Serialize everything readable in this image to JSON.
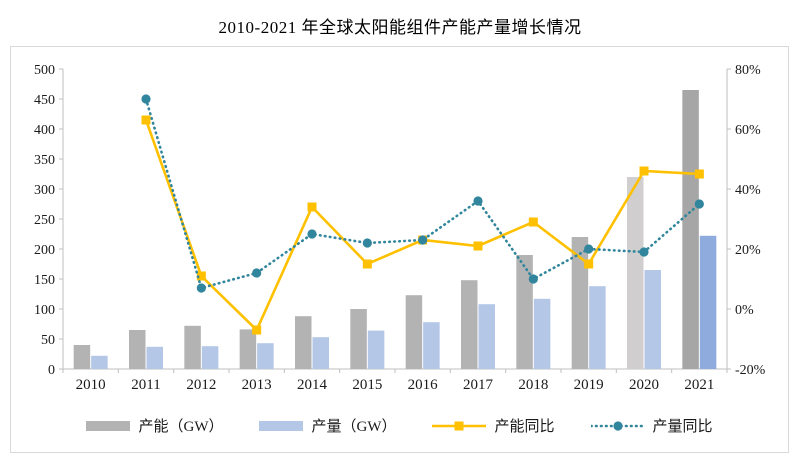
{
  "title": "2010-2021 年全球太阳能组件产能产量增长情况",
  "chart_data": {
    "type": "combo-bar-line",
    "title": "2010-2021 年全球太阳能组件产能产量增长情况",
    "categories": [
      "2010",
      "2011",
      "2012",
      "2013",
      "2014",
      "2015",
      "2016",
      "2017",
      "2018",
      "2019",
      "2020",
      "2021"
    ],
    "series": [
      {
        "name": "产能（GW）",
        "type": "bar",
        "axis": "left",
        "unit": "GW",
        "values": [
          40,
          65,
          72,
          66,
          88,
          100,
          123,
          148,
          190,
          220,
          320,
          465
        ],
        "color": "#B3B3B3",
        "color_overrides": {
          "2020": "#D0CECE",
          "2021": "#A6A6A6"
        }
      },
      {
        "name": "产量（GW）",
        "type": "bar",
        "axis": "left",
        "unit": "GW",
        "values": [
          22,
          37,
          38,
          43,
          53,
          64,
          78,
          108,
          117,
          138,
          165,
          222
        ],
        "color": "#B4C7E7",
        "color_overrides": {
          "2021": "#8FAADC"
        }
      },
      {
        "name": "产能同比",
        "type": "line",
        "line_style": "solid",
        "marker": "square",
        "axis": "right",
        "unit": "%",
        "values": [
          null,
          63,
          11,
          -7,
          34,
          15,
          23,
          21,
          29,
          15,
          46,
          45
        ],
        "color": "#FFC000"
      },
      {
        "name": "产量同比",
        "type": "line",
        "line_style": "dotted",
        "marker": "circle",
        "axis": "right",
        "unit": "%",
        "values": [
          null,
          70,
          7,
          12,
          25,
          22,
          23,
          36,
          10,
          20,
          19,
          35
        ],
        "color": "#31859C"
      }
    ],
    "left_axis": {
      "min": 0,
      "max": 500,
      "step": 50,
      "ticks": [
        "0",
        "50",
        "100",
        "150",
        "200",
        "250",
        "300",
        "350",
        "400",
        "450",
        "500"
      ]
    },
    "right_axis": {
      "min": -20,
      "max": 80,
      "step": 20,
      "ticks": [
        "-20%",
        "0%",
        "20%",
        "40%",
        "60%",
        "80%"
      ]
    },
    "grid": false,
    "legend_position": "bottom"
  },
  "colors": {
    "axis_line": "#BFBFBF",
    "frame_border": "#D9D9D9",
    "text": "#1A1A1A",
    "background": "#FFFFFF"
  }
}
